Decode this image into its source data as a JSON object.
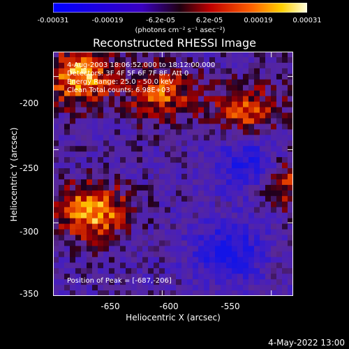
{
  "colorbar": {
    "ticks": [
      "-0.00031",
      "-0.00019",
      "-6.2e-05",
      "6.2e-05",
      "0.00019",
      "0.00031"
    ],
    "units": "(photons cm⁻² s⁻¹ asec⁻²)",
    "range": [
      -0.00031,
      0.00031
    ]
  },
  "chart_data": {
    "type": "heatmap",
    "title": "Reconstructed RHESSI Image",
    "xlabel": "Heliocentric X (arcsec)",
    "ylabel": "Heliocentric Y (arcsec)",
    "xlim": [
      -700,
      -590
    ],
    "ylim": [
      -350,
      -183
    ],
    "xticks": [
      -650,
      -600,
      -550
    ],
    "yticks": [
      -200,
      -250,
      -300,
      -350
    ],
    "colormap": [
      "#0000ff",
      "#000000",
      "#ff0000",
      "#ffff00",
      "#ffffff"
    ],
    "vmin": -0.00031,
    "vmax": 0.00031,
    "bright_regions": [
      {
        "x": -682,
        "y": -292,
        "level": "high"
      },
      {
        "x": -688,
        "y": -200,
        "level": "high"
      },
      {
        "x": -650,
        "y": -212,
        "level": "medium"
      },
      {
        "x": -612,
        "y": -225,
        "level": "medium"
      },
      {
        "x": -572,
        "y": -200,
        "level": "medium"
      },
      {
        "x": -590,
        "y": -270,
        "level": "medium"
      }
    ],
    "dark_regions": [
      {
        "x": -610,
        "y": -258,
        "level": "low"
      },
      {
        "x": -555,
        "y": -258,
        "level": "low"
      },
      {
        "x": -620,
        "y": -320,
        "level": "low"
      }
    ]
  },
  "info": {
    "time_range": "4-Aug-2003 18:06:52.000 to 18:12:00.000",
    "detectors": "Detectors: 3F 4F 5F 6F 7F 8F, Att 0",
    "energy": "Energy Range: 25.0 - 50.0 keV",
    "method": "Clean    Total counts: 6.98E+03",
    "peak": "Position of Peak = [-687,-206]"
  },
  "datestamp": "4-May-2022 13:00"
}
